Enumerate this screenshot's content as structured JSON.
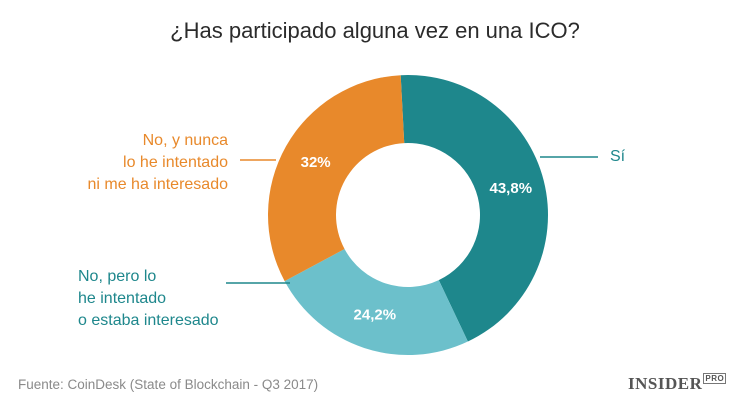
{
  "chart_data": {
    "type": "donut",
    "title": "¿Has participado alguna vez en una ICO?",
    "categories": [
      "Sí",
      "No, pero lo\nhe intentado\no estaba interesado",
      "No, y nunca\nlo he intentado\nni me ha interesado"
    ],
    "values": [
      43.8,
      24.2,
      32
    ],
    "value_labels": [
      "43,8%",
      "24,2%",
      "32%"
    ],
    "colors": [
      "#1e878c",
      "#6cc0cb",
      "#e8892b"
    ],
    "source": "Fuente: CoinDesk (State of Blockchain - Q3 2017)",
    "logo": "INSIDER",
    "logo_sub": "PRO"
  }
}
